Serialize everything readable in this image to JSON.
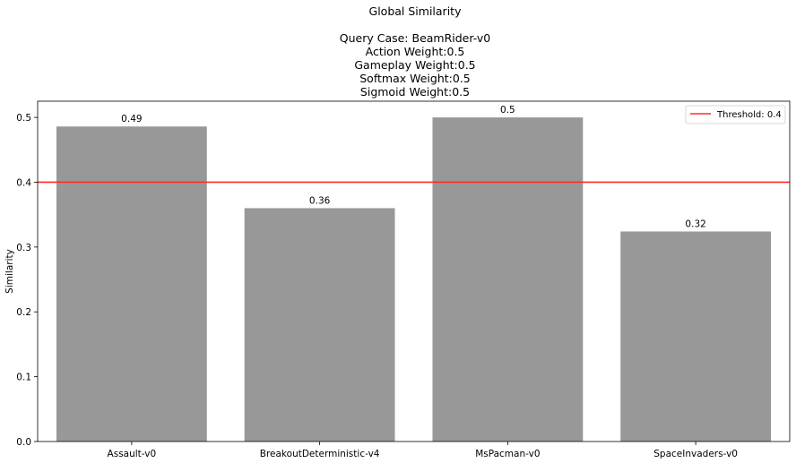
{
  "chart_data": {
    "type": "bar",
    "title": "Global Similarity",
    "subtitle_lines": [
      "Query Case: BeamRider-v0",
      "Action Weight:0.5",
      "Gameplay Weight:0.5",
      "Softmax Weight:0.5",
      "Sigmoid Weight:0.5"
    ],
    "categories": [
      "Assault-v0",
      "BreakoutDeterministic-v4",
      "MsPacman-v0",
      "SpaceInvaders-v0"
    ],
    "values": [
      0.486,
      0.36,
      0.5,
      0.324
    ],
    "value_labels": [
      "0.49",
      "0.36",
      "0.5",
      "0.32"
    ],
    "xlabel": "",
    "ylabel": "Similarity",
    "ylim": [
      0,
      0.525
    ],
    "yticks": [
      0.0,
      0.1,
      0.2,
      0.3,
      0.4,
      0.5
    ],
    "ytick_labels": [
      "0.0",
      "0.1",
      "0.2",
      "0.3",
      "0.4",
      "0.5"
    ],
    "threshold": {
      "value": 0.4,
      "label": "Threshold: 0.4",
      "color": "#ff2b2b"
    },
    "bar_color": "#989898",
    "legend_position": "top-right",
    "grid": false
  }
}
